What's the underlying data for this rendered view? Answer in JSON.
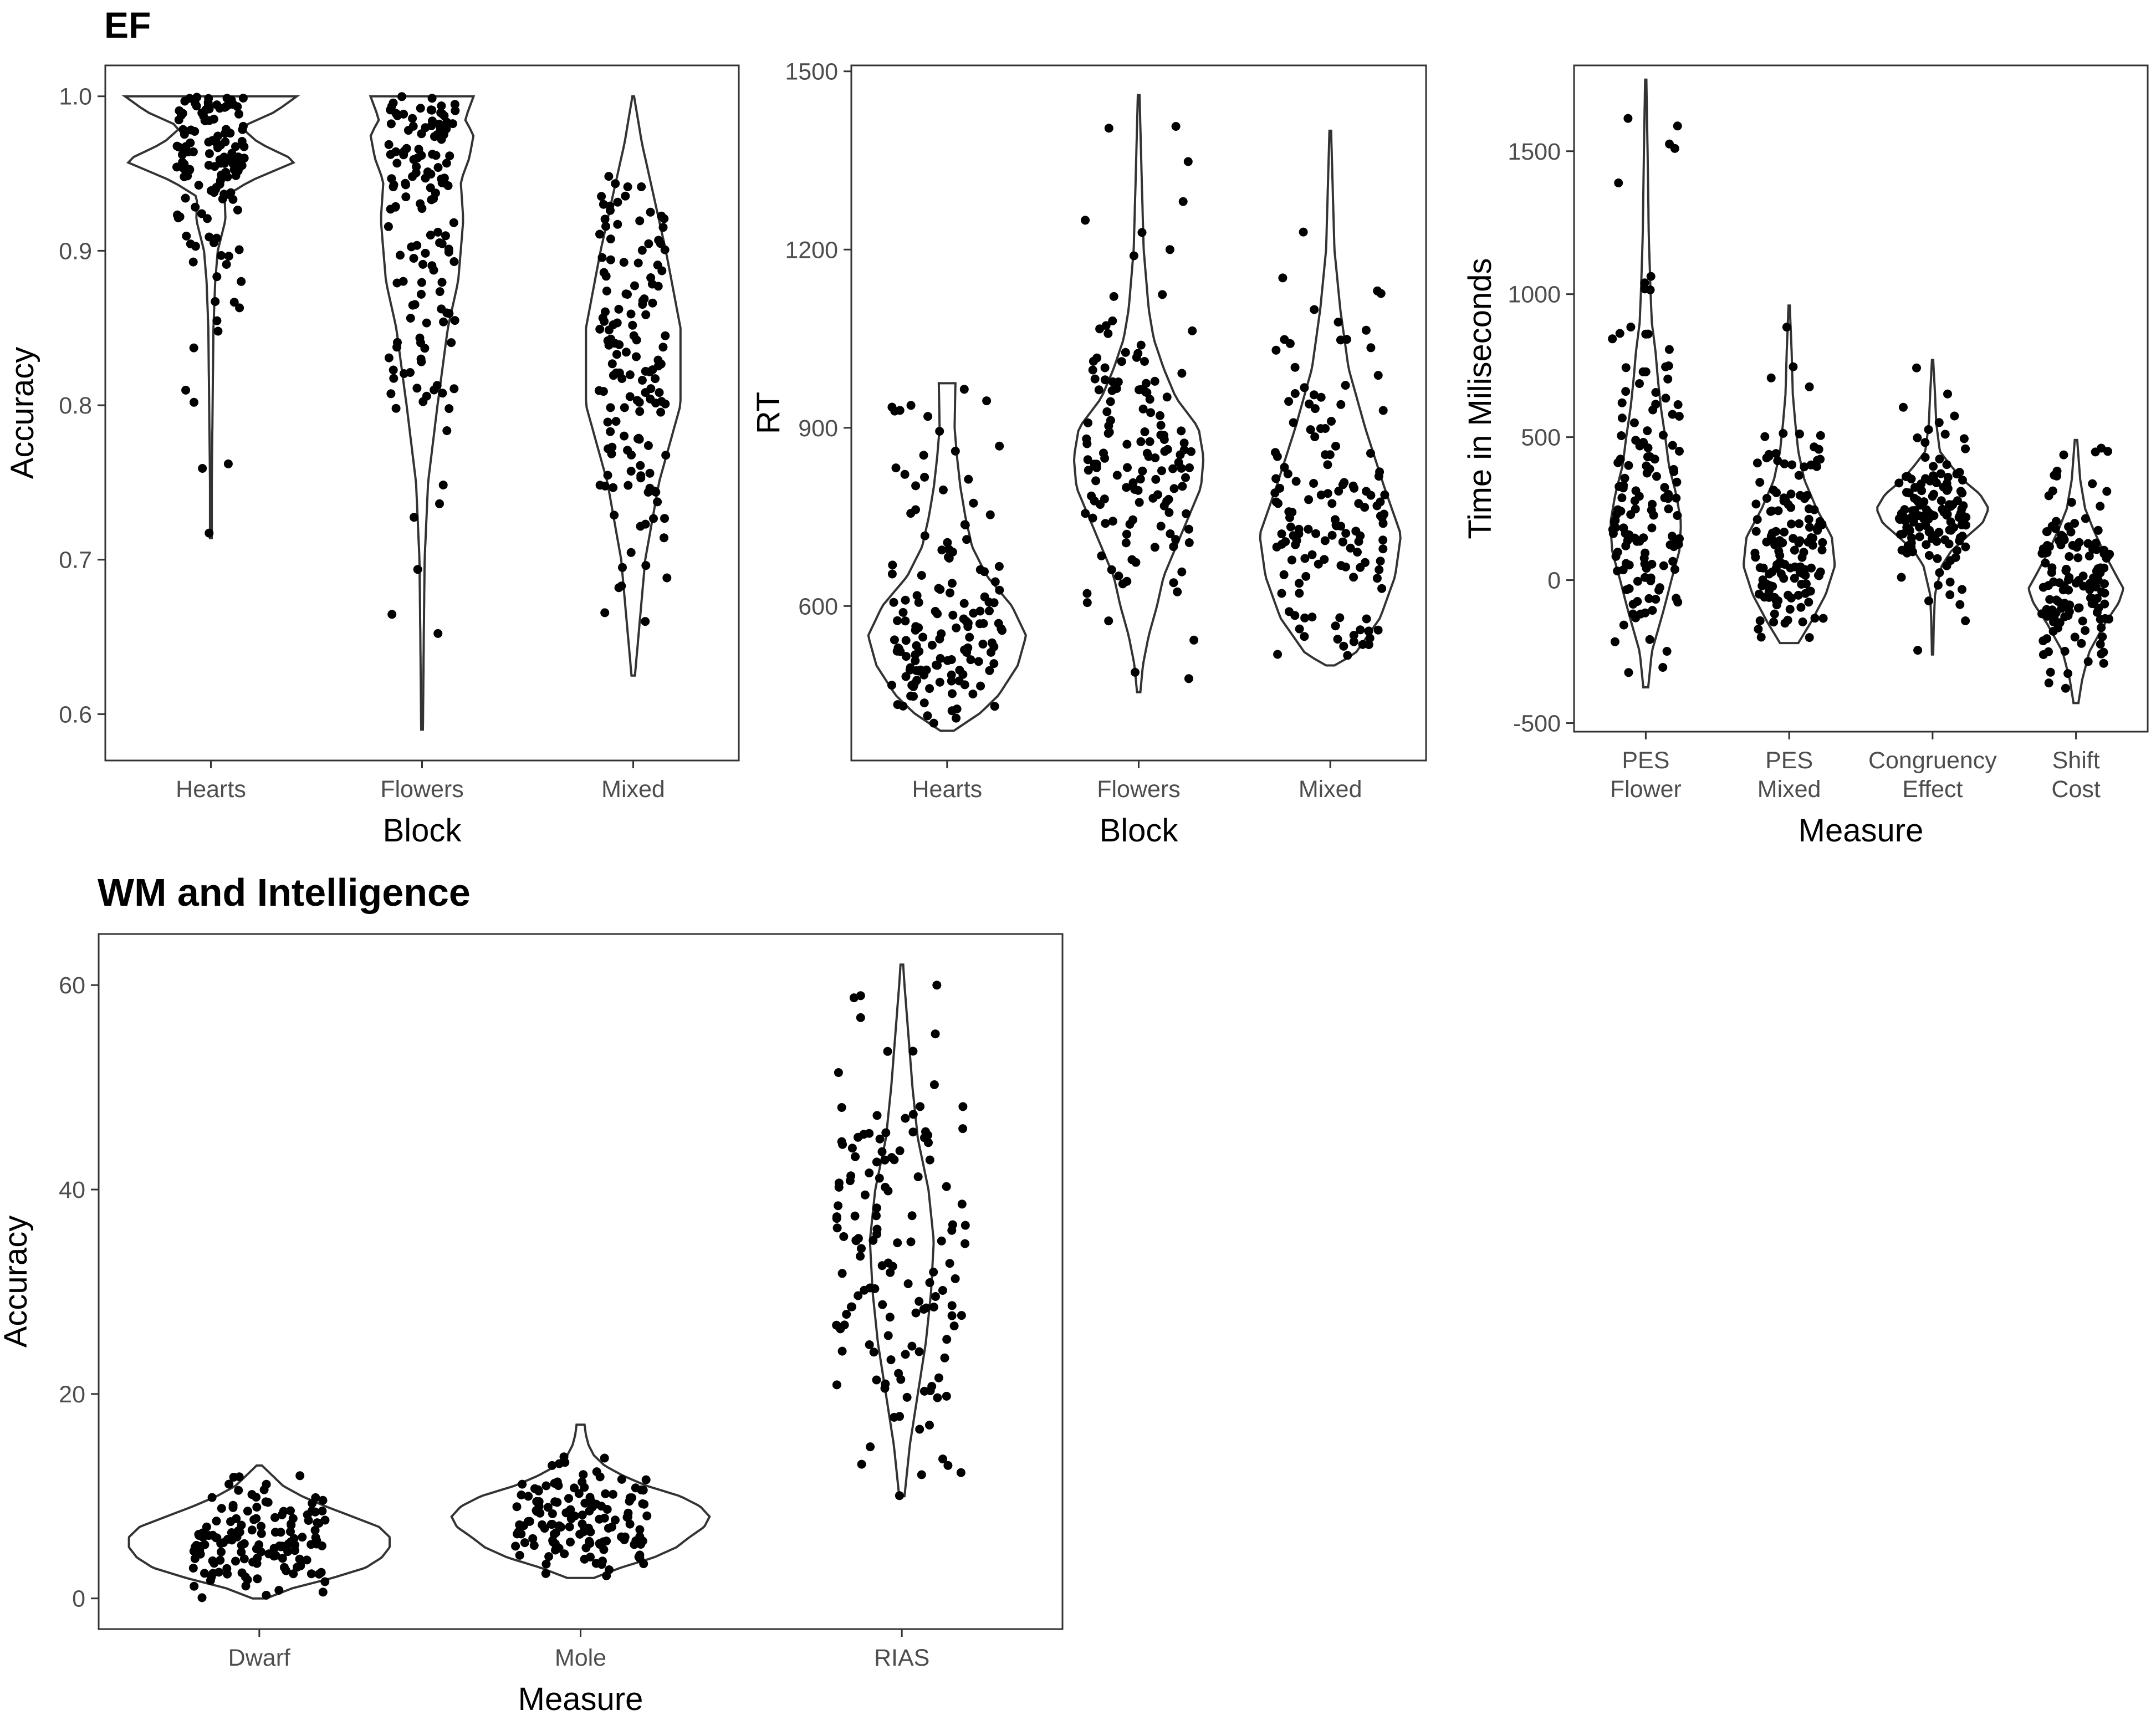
{
  "sections": {
    "ef_title": "EF",
    "wm_title": "WM and Intelligence"
  },
  "chart_data": [
    {
      "type": "violin",
      "panel": "EF accuracy",
      "xlabel": "Block",
      "ylabel": "Accuracy",
      "categories": [
        "Hearts",
        "Flowers",
        "Mixed"
      ],
      "ylim": [
        0.57,
        1.02
      ],
      "yticks": [
        0.6,
        0.7,
        0.8,
        0.9,
        1.0
      ],
      "ytick_labels": [
        "0.6",
        "0.7",
        "0.8",
        "0.9",
        "1.0"
      ],
      "grid": false,
      "series": [
        {
          "category": "Hearts",
          "min": 0.714,
          "max": 1.0,
          "density": [
            [
              0.714,
              0.01
            ],
            [
              0.75,
              0.01
            ],
            [
              0.8,
              0.02
            ],
            [
              0.85,
              0.03
            ],
            [
              0.88,
              0.05
            ],
            [
              0.9,
              0.08
            ],
            [
              0.92,
              0.17
            ],
            [
              0.935,
              0.16
            ],
            [
              0.945,
              0.45
            ],
            [
              0.958,
              1.0
            ],
            [
              0.97,
              0.55
            ],
            [
              0.98,
              0.35
            ],
            [
              0.99,
              0.75
            ],
            [
              1.0,
              1.0
            ]
          ]
        },
        {
          "category": "Flowers",
          "min": 0.59,
          "max": 1.0,
          "density": [
            [
              0.59,
              0.01
            ],
            [
              0.65,
              0.02
            ],
            [
              0.7,
              0.03
            ],
            [
              0.75,
              0.07
            ],
            [
              0.8,
              0.18
            ],
            [
              0.85,
              0.3
            ],
            [
              0.88,
              0.42
            ],
            [
              0.92,
              0.48
            ],
            [
              0.945,
              0.45
            ],
            [
              0.96,
              0.55
            ],
            [
              0.975,
              0.6
            ],
            [
              0.985,
              0.5
            ],
            [
              1.0,
              0.6
            ]
          ]
        },
        {
          "category": "Mixed",
          "min": 0.625,
          "max": 1.0,
          "density": [
            [
              0.625,
              0.02
            ],
            [
              0.7,
              0.14
            ],
            [
              0.75,
              0.3
            ],
            [
              0.8,
              0.55
            ],
            [
              0.85,
              0.55
            ],
            [
              0.9,
              0.38
            ],
            [
              0.94,
              0.22
            ],
            [
              0.97,
              0.1
            ],
            [
              1.0,
              0.01
            ]
          ]
        }
      ]
    },
    {
      "type": "violin",
      "panel": "EF RT",
      "xlabel": "Block",
      "ylabel": "RT",
      "categories": [
        "Hearts",
        "Flowers",
        "Mixed"
      ],
      "ylim": [
        340,
        1510
      ],
      "yticks": [
        600,
        900,
        1200,
        1500
      ],
      "ytick_labels": [
        "600",
        "900",
        "1200",
        "1500"
      ],
      "grid": false,
      "series": [
        {
          "category": "Hearts",
          "min": 390,
          "max": 975,
          "density": [
            [
              390,
              0.08
            ],
            [
              420,
              0.4
            ],
            [
              450,
              0.62
            ],
            [
              500,
              0.85
            ],
            [
              550,
              0.95
            ],
            [
              600,
              0.78
            ],
            [
              650,
              0.48
            ],
            [
              700,
              0.3
            ],
            [
              750,
              0.22
            ],
            [
              800,
              0.16
            ],
            [
              850,
              0.12
            ],
            [
              900,
              0.09
            ],
            [
              975,
              0.1
            ]
          ]
        },
        {
          "category": "Flowers",
          "min": 455,
          "max": 1460,
          "density": [
            [
              455,
              0.02
            ],
            [
              500,
              0.05
            ],
            [
              550,
              0.12
            ],
            [
              600,
              0.22
            ],
            [
              650,
              0.3
            ],
            [
              700,
              0.45
            ],
            [
              800,
              0.75
            ],
            [
              850,
              0.78
            ],
            [
              900,
              0.72
            ],
            [
              950,
              0.45
            ],
            [
              1000,
              0.3
            ],
            [
              1050,
              0.18
            ],
            [
              1100,
              0.12
            ],
            [
              1200,
              0.06
            ],
            [
              1300,
              0.04
            ],
            [
              1460,
              0.01
            ]
          ]
        },
        {
          "category": "Mixed",
          "min": 500,
          "max": 1400,
          "density": [
            [
              500,
              0.05
            ],
            [
              520,
              0.3
            ],
            [
              580,
              0.6
            ],
            [
              650,
              0.78
            ],
            [
              720,
              0.85
            ],
            [
              800,
              0.65
            ],
            [
              900,
              0.42
            ],
            [
              1000,
              0.22
            ],
            [
              1100,
              0.12
            ],
            [
              1200,
              0.05
            ],
            [
              1300,
              0.03
            ],
            [
              1400,
              0.01
            ]
          ]
        }
      ]
    },
    {
      "type": "violin",
      "panel": "EF time",
      "xlabel": "Measure",
      "ylabel": "Time in Miliseconds",
      "categories": [
        "PES\nFlower",
        "PES\nMixed",
        "Congruency\nEffect",
        "Shift\nCost"
      ],
      "ylim": [
        -530,
        1800
      ],
      "yticks": [
        -500,
        0,
        500,
        1000,
        1500
      ],
      "ytick_labels": [
        "-500",
        "0",
        "500",
        "1000",
        "1500"
      ],
      "grid": false,
      "series": [
        {
          "category": "PES Flower",
          "min": -375,
          "max": 1750,
          "density": [
            [
              -375,
              0.04
            ],
            [
              -250,
              0.1
            ],
            [
              -100,
              0.3
            ],
            [
              0,
              0.42
            ],
            [
              100,
              0.55
            ],
            [
              200,
              0.58
            ],
            [
              300,
              0.5
            ],
            [
              400,
              0.38
            ],
            [
              500,
              0.32
            ],
            [
              600,
              0.25
            ],
            [
              700,
              0.2
            ],
            [
              800,
              0.16
            ],
            [
              900,
              0.1
            ],
            [
              1000,
              0.08
            ],
            [
              1200,
              0.05
            ],
            [
              1500,
              0.03
            ],
            [
              1750,
              0.01
            ]
          ]
        },
        {
          "category": "PES Mixed",
          "min": -220,
          "max": 960,
          "density": [
            [
              -220,
              0.15
            ],
            [
              -150,
              0.35
            ],
            [
              -50,
              0.6
            ],
            [
              50,
              0.75
            ],
            [
              150,
              0.7
            ],
            [
              250,
              0.45
            ],
            [
              350,
              0.25
            ],
            [
              450,
              0.15
            ],
            [
              550,
              0.1
            ],
            [
              650,
              0.06
            ],
            [
              800,
              0.04
            ],
            [
              960,
              0.01
            ]
          ]
        },
        {
          "category": "Congruency Effect",
          "min": -260,
          "max": 770,
          "density": [
            [
              -260,
              0.01
            ],
            [
              -150,
              0.02
            ],
            [
              -50,
              0.04
            ],
            [
              50,
              0.15
            ],
            [
              100,
              0.3
            ],
            [
              150,
              0.55
            ],
            [
              200,
              0.82
            ],
            [
              250,
              0.92
            ],
            [
              300,
              0.78
            ],
            [
              350,
              0.5
            ],
            [
              400,
              0.3
            ],
            [
              450,
              0.12
            ],
            [
              550,
              0.06
            ],
            [
              650,
              0.04
            ],
            [
              770,
              0.01
            ]
          ]
        },
        {
          "category": "Shift Cost",
          "min": -430,
          "max": 490,
          "density": [
            [
              -430,
              0.04
            ],
            [
              -350,
              0.1
            ],
            [
              -250,
              0.22
            ],
            [
              -150,
              0.48
            ],
            [
              -80,
              0.7
            ],
            [
              -30,
              0.78
            ],
            [
              20,
              0.65
            ],
            [
              100,
              0.45
            ],
            [
              180,
              0.28
            ],
            [
              250,
              0.15
            ],
            [
              350,
              0.07
            ],
            [
              490,
              0.02
            ]
          ]
        }
      ]
    },
    {
      "type": "violin",
      "panel": "WM and Intelligence",
      "xlabel": "Measure",
      "ylabel": "Accuracy",
      "categories": [
        "Dwarf",
        "Mole",
        "RIAS"
      ],
      "ylim": [
        -3,
        65
      ],
      "yticks": [
        0,
        20,
        40,
        60
      ],
      "ytick_labels": [
        "0",
        "20",
        "40",
        "60"
      ],
      "grid": false,
      "series": [
        {
          "category": "Dwarf",
          "min": 0,
          "max": 13,
          "density": [
            [
              0,
              0.05
            ],
            [
              1,
              0.25
            ],
            [
              2,
              0.55
            ],
            [
              3,
              0.8
            ],
            [
              4,
              0.92
            ],
            [
              5,
              0.98
            ],
            [
              6,
              0.98
            ],
            [
              7,
              0.9
            ],
            [
              8,
              0.7
            ],
            [
              9,
              0.5
            ],
            [
              10,
              0.32
            ],
            [
              11,
              0.18
            ],
            [
              12,
              0.1
            ],
            [
              13,
              0.02
            ]
          ]
        },
        {
          "category": "Mole",
          "min": 2,
          "max": 17,
          "density": [
            [
              2,
              0.1
            ],
            [
              3,
              0.3
            ],
            [
              4,
              0.55
            ],
            [
              5,
              0.72
            ],
            [
              6,
              0.82
            ],
            [
              7,
              0.93
            ],
            [
              8,
              0.97
            ],
            [
              9,
              0.9
            ],
            [
              10,
              0.75
            ],
            [
              11,
              0.5
            ],
            [
              12,
              0.32
            ],
            [
              13,
              0.18
            ],
            [
              14,
              0.1
            ],
            [
              15,
              0.06
            ],
            [
              16,
              0.04
            ],
            [
              17,
              0.03
            ]
          ]
        },
        {
          "category": "RIAS",
          "min": 10,
          "max": 62,
          "density": [
            [
              10,
              0.02
            ],
            [
              15,
              0.06
            ],
            [
              20,
              0.12
            ],
            [
              25,
              0.18
            ],
            [
              30,
              0.22
            ],
            [
              35,
              0.24
            ],
            [
              40,
              0.2
            ],
            [
              45,
              0.12
            ],
            [
              50,
              0.08
            ],
            [
              55,
              0.05
            ],
            [
              60,
              0.02
            ],
            [
              62,
              0.01
            ]
          ]
        }
      ]
    }
  ],
  "colors": {
    "violin_stroke": "#333333",
    "points": "#000000",
    "panel_border": "#333333",
    "tick_text": "#4d4d4d",
    "label_text": "#000000"
  }
}
